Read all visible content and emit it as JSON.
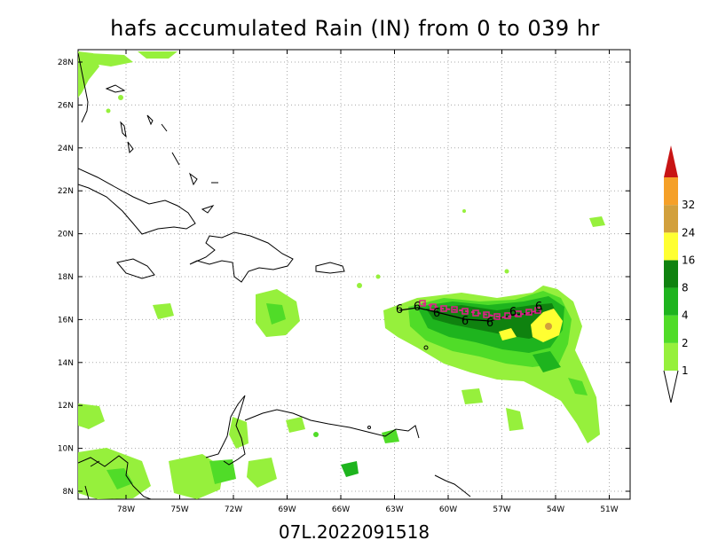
{
  "title": "hafs accumulated Rain (IN) from 0 to 039 hr",
  "subtitle": "07L.2022091518",
  "lat_labels": [
    "28N",
    "26N",
    "24N",
    "22N",
    "20N",
    "18N",
    "16N",
    "14N",
    "12N",
    "10N",
    "8N"
  ],
  "lon_labels": [
    "78W",
    "75W",
    "72W",
    "69W",
    "66W",
    "63W",
    "60W",
    "57W",
    "54W",
    "51W"
  ],
  "colorbar": {
    "levels": [
      "1",
      "2",
      "4",
      "8",
      "16",
      "24",
      "32"
    ],
    "colors": [
      "#96f03c",
      "#50dc28",
      "#1eb41e",
      "#0f820f",
      "#ffff32",
      "#d2a03c",
      "#f5a028",
      "#c81414"
    ]
  },
  "track_symbol": "6",
  "track": {
    "line_color": "#000000",
    "marker_color": "#e0208c"
  }
}
